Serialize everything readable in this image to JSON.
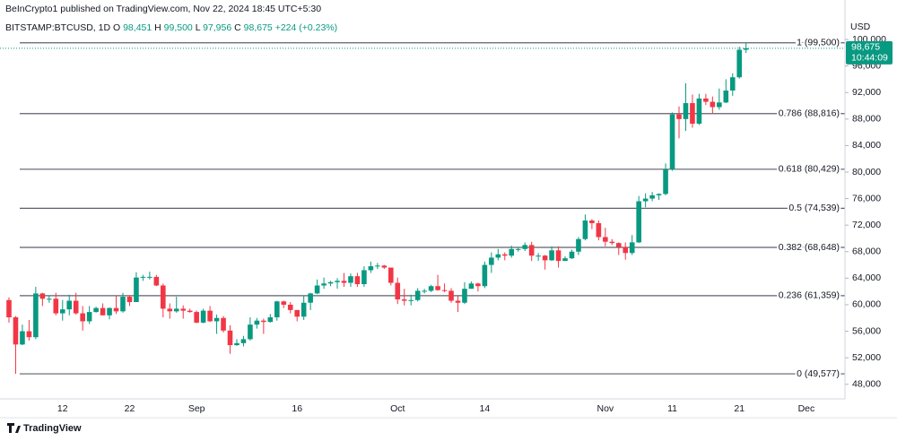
{
  "chart_data": {
    "type": "candlestick",
    "title": "BeInCrypto1 published on TradingView.com, Nov 22, 2024 18:45 UTC+5:30",
    "symbol": "BITSTAMP:BTCUSD, 1D",
    "legend": [
      {
        "key": "O",
        "value": "98,451"
      },
      {
        "key": "H",
        "value": "99,500"
      },
      {
        "key": "L",
        "value": "97,956"
      },
      {
        "key": "C",
        "value": "98,675"
      }
    ],
    "change": "+224 (+0.23%)",
    "currency": "USD",
    "brand": "TradingView",
    "up_color": "#089981",
    "down_color": "#f23645",
    "level_color": "#5d606b",
    "categories": [
      null,
      null,
      null,
      null,
      null,
      null,
      null,
      null,
      "12",
      null,
      null,
      null,
      null,
      null,
      null,
      null,
      null,
      null,
      "22",
      null,
      null,
      null,
      null,
      null,
      null,
      null,
      null,
      null,
      "Sep",
      null,
      null,
      null,
      null,
      null,
      null,
      null,
      null,
      null,
      null,
      null,
      null,
      null,
      null,
      "16",
      null,
      null,
      null,
      null,
      null,
      null,
      null,
      null,
      null,
      null,
      null,
      null,
      null,
      null,
      "Oct",
      null,
      null,
      null,
      null,
      null,
      null,
      null,
      null,
      null,
      null,
      null,
      null,
      "14",
      null,
      null,
      null,
      null,
      null,
      null,
      null,
      null,
      null,
      null,
      null,
      null,
      null,
      null,
      null,
      null,
      null,
      "Nov",
      null,
      null,
      null,
      null,
      null,
      null,
      null,
      null,
      null,
      "11",
      null,
      null,
      null,
      null,
      null,
      null,
      null,
      null,
      null,
      "21",
      null,
      null,
      null,
      null,
      null,
      null,
      null,
      null,
      null,
      "Dec"
    ],
    "open": [
      60700,
      58100,
      54000,
      56000,
      55100,
      61700,
      60900,
      60900,
      58700,
      59300,
      60600,
      58700,
      57500,
      58900,
      59500,
      58400,
      59500,
      59000,
      61200,
      60400,
      64100,
      64200,
      64200,
      62900,
      59400,
      59000,
      59400,
      59100,
      58900,
      57300,
      59100,
      57500,
      58000,
      56100,
      53900,
      54200,
      54800,
      57000,
      57600,
      57400,
      58100,
      60500,
      60000,
      59200,
      58200,
      60300,
      61700,
      62900,
      63200,
      63400,
      63600,
      63300,
      64300,
      63100,
      65200,
      65800,
      65900,
      65600,
      63300,
      60800,
      60600,
      60700,
      62100,
      62100,
      62800,
      62200,
      62100,
      60600,
      60300,
      62400,
      63200,
      62800,
      66000,
      67100,
      67600,
      67400,
      68400,
      68400,
      69000,
      67400,
      67400,
      66700,
      68200,
      66600,
      67000,
      68000,
      69900,
      72700,
      72300,
      70200,
      69500,
      69300,
      68700,
      67800,
      69400,
      75600,
      76000,
      76500,
      76700,
      80400,
      88700,
      88000,
      90400,
      87300,
      91100,
      90600,
      89800,
      90500,
      92300,
      94300,
      98451,
      null,
      null,
      null,
      null,
      null,
      null,
      null,
      null,
      null
    ],
    "high": [
      61100,
      58300,
      57000,
      57700,
      62700,
      61800,
      61400,
      61800,
      60700,
      61500,
      61800,
      59800,
      59800,
      59700,
      60200,
      59600,
      61400,
      61800,
      61400,
      64900,
      64500,
      65000,
      64500,
      63200,
      60200,
      61200,
      59900,
      59400,
      59100,
      59400,
      59800,
      58500,
      58300,
      56900,
      54800,
      55300,
      58100,
      58000,
      57900,
      58600,
      60600,
      60600,
      60400,
      59200,
      61300,
      61800,
      63800,
      64100,
      63600,
      64000,
      64800,
      64700,
      64800,
      65800,
      66500,
      66300,
      66000,
      65600,
      64100,
      62400,
      61500,
      62500,
      62400,
      63000,
      64500,
      63200,
      62500,
      61300,
      63400,
      63500,
      63300,
      66500,
      67900,
      68400,
      67900,
      68900,
      68700,
      69400,
      69500,
      67800,
      67500,
      68800,
      68800,
      67300,
      68300,
      70200,
      73600,
      72900,
      72700,
      71600,
      69900,
      69400,
      69400,
      70500,
      76400,
      76800,
      77000,
      76800,
      81300,
      89000,
      89900,
      93400,
      91700,
      91800,
      91800,
      91400,
      92600,
      94000,
      94900,
      98900,
      99500,
      null,
      null,
      null,
      null,
      null,
      null,
      null,
      null,
      null
    ],
    "low": [
      57300,
      49577,
      53900,
      54600,
      54800,
      59800,
      60300,
      58400,
      57600,
      58400,
      58500,
      56100,
      57100,
      58800,
      58400,
      57800,
      58600,
      58800,
      59800,
      60400,
      63600,
      63800,
      62800,
      58100,
      57900,
      58800,
      57900,
      58800,
      57200,
      57200,
      57400,
      55600,
      55800,
      52600,
      53800,
      53700,
      54600,
      56400,
      55600,
      57300,
      57600,
      59500,
      58700,
      57500,
      57700,
      59200,
      61600,
      62400,
      62800,
      62400,
      62700,
      62700,
      62700,
      62700,
      64800,
      65400,
      65400,
      62900,
      60100,
      59900,
      59900,
      60500,
      61700,
      61900,
      62100,
      61900,
      60300,
      58900,
      60100,
      62400,
      62000,
      62500,
      64800,
      66700,
      66700,
      67100,
      68000,
      68100,
      66600,
      66600,
      65300,
      66600,
      65600,
      66600,
      66900,
      67500,
      69700,
      71400,
      69700,
      68800,
      69000,
      67500,
      66800,
      67500,
      69300,
      74700,
      75600,
      75800,
      76500,
      80200,
      85100,
      86200,
      86700,
      87100,
      90100,
      88800,
      89400,
      90400,
      91500,
      94100,
      97956,
      null,
      null,
      null,
      null,
      null,
      null,
      null,
      null,
      null
    ],
    "close": [
      58100,
      54000,
      56000,
      55100,
      61700,
      60900,
      60900,
      58700,
      59300,
      60600,
      58700,
      57500,
      58900,
      59500,
      58400,
      59500,
      59000,
      61200,
      60400,
      64100,
      64200,
      64200,
      62900,
      59400,
      59000,
      59400,
      59100,
      58900,
      57300,
      59100,
      57500,
      58000,
      56100,
      53900,
      54200,
      54800,
      57000,
      57600,
      57400,
      58100,
      60500,
      60000,
      59200,
      58200,
      60300,
      61700,
      62900,
      63200,
      63400,
      63600,
      63300,
      64300,
      63100,
      65200,
      65800,
      65900,
      65600,
      63300,
      60800,
      60600,
      60700,
      62100,
      62100,
      62800,
      62200,
      62100,
      60600,
      60300,
      62400,
      63200,
      62800,
      66000,
      67100,
      67600,
      67400,
      68400,
      68400,
      69000,
      67400,
      67400,
      66700,
      68200,
      66600,
      67000,
      68000,
      69900,
      72700,
      72300,
      70200,
      69500,
      69300,
      68700,
      67800,
      69400,
      75600,
      76000,
      76500,
      76700,
      80400,
      88700,
      88000,
      90400,
      87300,
      91100,
      90600,
      89800,
      90500,
      92300,
      94300,
      98451,
      98675,
      null,
      null,
      null,
      null,
      null,
      null,
      null,
      null,
      null
    ],
    "levels": [
      {
        "value": 99500,
        "label": "1 (99,500)"
      },
      {
        "value": 88816,
        "label": "0.786 (88,816)"
      },
      {
        "value": 80429,
        "label": "0.618 (80,429)"
      },
      {
        "value": 74539,
        "label": "0.5 (74,539)"
      },
      {
        "value": 68648,
        "label": "0.382 (68,648)"
      },
      {
        "value": 61359,
        "label": "0.236 (61,359)"
      },
      {
        "value": 49577,
        "label": "0 (49,577)"
      }
    ],
    "last_price": {
      "value": 98675,
      "label": "98,675"
    },
    "countdown": "10:44:09",
    "ylim": [
      45800,
      104600
    ],
    "yticks": [
      {
        "value": 48000,
        "label": "48,000"
      },
      {
        "value": 52000,
        "label": "52,000"
      },
      {
        "value": 56000,
        "label": "56,000"
      },
      {
        "value": 60000,
        "label": "60,000"
      },
      {
        "value": 64000,
        "label": "64,000"
      },
      {
        "value": 68000,
        "label": "68,000"
      },
      {
        "value": 72000,
        "label": "72,000"
      },
      {
        "value": 76000,
        "label": "76,000"
      },
      {
        "value": 80000,
        "label": "80,000"
      },
      {
        "value": 84000,
        "label": "84,000"
      },
      {
        "value": 88000,
        "label": "88,000"
      },
      {
        "value": 92000,
        "label": "92,000"
      },
      {
        "value": 96000,
        "label": "96,000"
      },
      {
        "value": 100000,
        "label": "100,000"
      }
    ]
  }
}
